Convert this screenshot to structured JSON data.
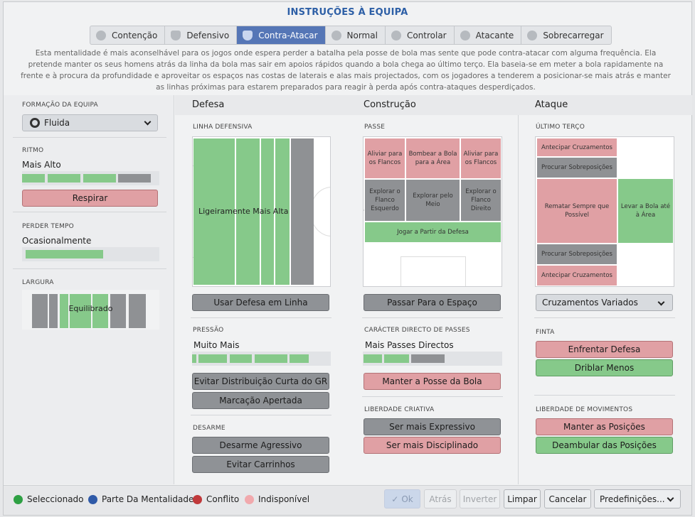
{
  "title": "INSTRUÇÕES À EQUIPA",
  "tabs": [
    {
      "label": "Contenção",
      "icon": "heart-shield-icon"
    },
    {
      "label": "Defensivo",
      "icon": "shield-icon"
    },
    {
      "label": "Contra-Atacar",
      "icon": "counter-attack-icon",
      "active": true
    },
    {
      "label": "Normal",
      "icon": "normal-icon"
    },
    {
      "label": "Controlar",
      "icon": "control-icon"
    },
    {
      "label": "Atacante",
      "icon": "attack-icon"
    },
    {
      "label": "Sobrecarregar",
      "icon": "overload-icon"
    }
  ],
  "description": "Esta mentalidade é mais aconselhável para os jogos onde espera perder a batalha pela posse de bola mas sente que pode contra-atacar com alguma frequência. Ela pretende manter os seus homens atrás da linha da bola mas sair em apoios rápidos quando a bola chega ao último terço. Ela baseia-se em meter a bola rapidamente na frente e à procura da profundidade e aproveitar os espaços nas costas de laterais e alas mais projectados, com os jogadores a tenderem a posicionar-se mais atrás e manter as linhas próximas para estarem preparados para reagir à perda após contra-ataques desperdiçados.",
  "sidebar": {
    "formation_label": "FORMAÇÃO DA EQUIPA",
    "formation_value": "Fluida",
    "tempo_label": "RITMO",
    "tempo_value": "Mais Alto",
    "tempo_button": "Respirar",
    "timewasting_label": "PERDER TEMPO",
    "timewasting_value": "Ocasionalmente",
    "width_label": "LARGURA",
    "width_value": "Equilibrado"
  },
  "columns": {
    "defence": "Defesa",
    "buildup": "Construção",
    "attack": "Ataque"
  },
  "defence": {
    "line_label": "LINHA DEFENSIVA",
    "line_value": "Ligeiramente Mais Alta",
    "line_button": "Usar Defesa em Linha",
    "press_label": "PRESSÃO",
    "press_value": "Muito Mais",
    "press_buttons": [
      "Evitar Distribuição Curta do GR",
      "Marcação Apertada"
    ],
    "tackle_label": "DESARME",
    "tackle_buttons": [
      "Desarme Agressivo",
      "Evitar Carrinhos"
    ]
  },
  "buildup": {
    "passing_label": "PASSE",
    "zones": {
      "left_flank": "Aliviar para os Flancos",
      "center_area": "Bombear a Bola para a Área",
      "right_flank": "Aliviar para os Flancos",
      "explore_left": "Explorar o Flanco Esquerdo",
      "explore_middle": "Explorar pelo Meio",
      "explore_right": "Explorar o Flanco Direito",
      "play_from_back": "Jogar a Partir da Defesa"
    },
    "space_button": "Passar Para o Espaço",
    "directness_label": "CARÁCTER DIRECTO DE PASSES",
    "directness_value": "Mais Passes Directos",
    "directness_button": "Manter a Posse da Bola",
    "creative_label": "LIBERDADE CRIATIVA",
    "creative_buttons": [
      "Ser mais Expressivo",
      "Ser mais Disciplinado"
    ]
  },
  "attack": {
    "final_third_label": "ÚLTIMO TERÇO",
    "zones": {
      "early_cross_top": "Antecipar Cruzamentos",
      "overlap_top": "Procurar Sobreposições",
      "shoot_on_sight": "Rematar Sempre que Possível",
      "work_ball": "Levar a Bola até à Área",
      "overlap_bottom": "Procurar Sobreposições",
      "early_cross_bottom": "Antecipar Cruzamentos"
    },
    "crossing_value": "Cruzamentos Variados",
    "dribble_label": "FINTA",
    "dribble_buttons": [
      "Enfrentar Defesa",
      "Driblar Menos"
    ],
    "movement_label": "LIBERDADE DE MOVIMENTOS",
    "movement_buttons": [
      "Manter as Posições",
      "Deambular das Posições"
    ]
  },
  "legend": [
    {
      "label": "Seleccionado",
      "color": "#2ea043"
    },
    {
      "label": "Parte Da Mentalidade",
      "color": "#2f5aa8"
    },
    {
      "label": "Conflito",
      "color": "#c0393b"
    },
    {
      "label": "Indisponível",
      "color": "#f1a9ad"
    }
  ],
  "footer_buttons": {
    "ok": "Ok",
    "back": "Atrás",
    "invert": "Inverter",
    "clear": "Limpar",
    "cancel": "Cancelar",
    "presets": "Predefinições..."
  }
}
